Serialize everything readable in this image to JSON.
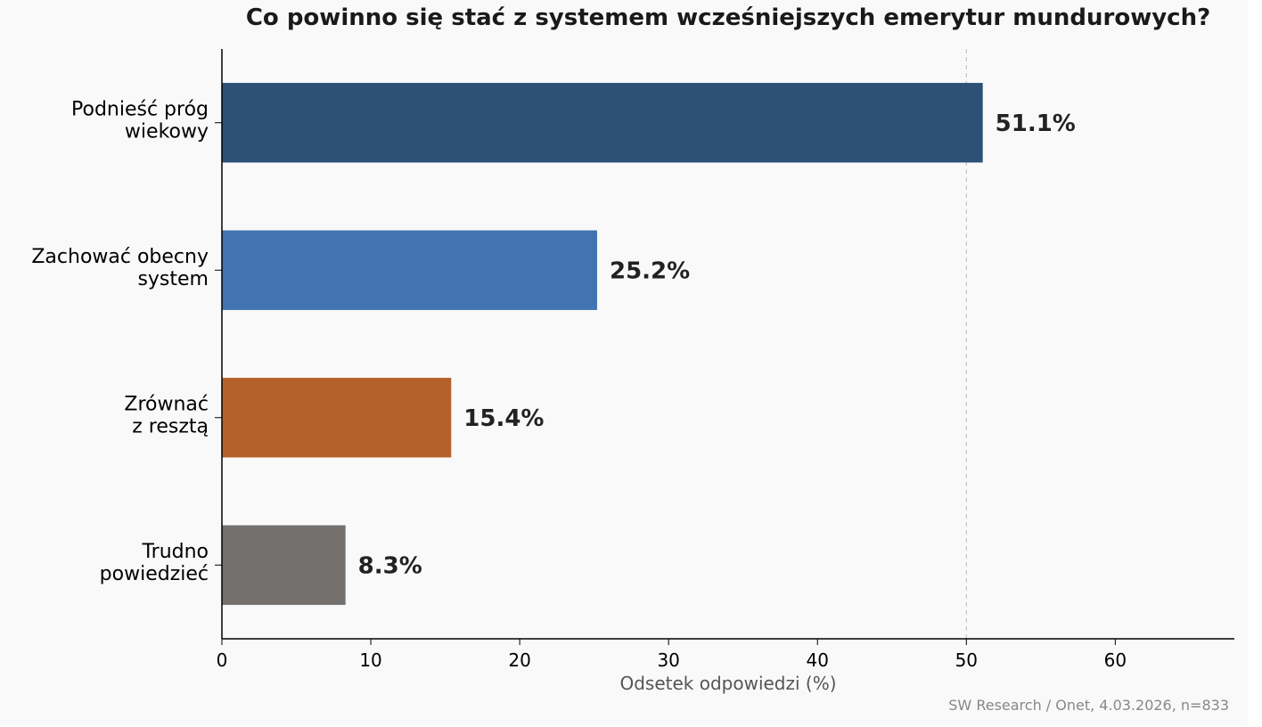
{
  "chart_data": {
    "type": "bar",
    "orientation": "horizontal",
    "title": "Co powinno się stać z systemem wcześniejszych emerytur mundurowych?",
    "xlabel": "Odsetek odpowiedzi (%)",
    "ylabel": "",
    "xlim": [
      0,
      68
    ],
    "xticks": [
      0,
      10,
      20,
      30,
      40,
      50,
      60
    ],
    "reference_line": 50,
    "categories": [
      [
        "Podnieść próg",
        "wiekowy"
      ],
      [
        "Zachować obecny",
        "system"
      ],
      [
        "Zrównać",
        "z resztą"
      ],
      [
        "Trudno",
        "powiedzieć"
      ]
    ],
    "values": [
      51.1,
      25.2,
      15.4,
      8.3
    ],
    "value_labels": [
      "51.1%",
      "25.2%",
      "15.4%",
      "8.3%"
    ],
    "colors": [
      "#2d5077",
      "#4174b1",
      "#b5612b",
      "#74706e"
    ],
    "grid": false,
    "source": "SW Research / Onet, 4.03.2026, n=833"
  }
}
